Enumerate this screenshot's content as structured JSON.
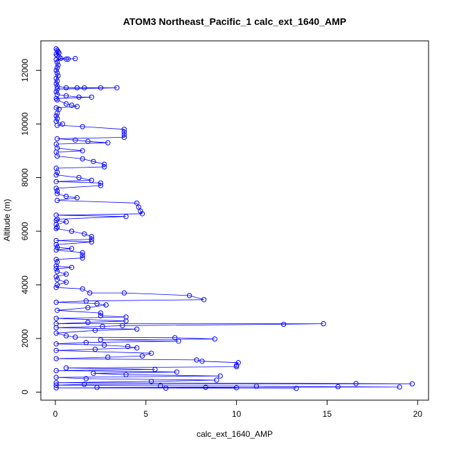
{
  "chart_data": {
    "type": "scatter",
    "title": "ATOM3 Northeast_Pacific_1 calc_ext_1640_AMP",
    "xlabel": "calc_ext_1640_AMP",
    "ylabel": "Altitude (m)",
    "xlim": [
      -0.8,
      20.6
    ],
    "ylim": [
      -300,
      13100
    ],
    "xticks": [
      0,
      5,
      10,
      15,
      20
    ],
    "yticks": [
      0,
      2000,
      4000,
      6000,
      8000,
      10000,
      12000
    ],
    "grid": false,
    "marker": "open-circle",
    "connected": true,
    "series": [
      {
        "color": "#0000ff",
        "points": [
          [
            0.05,
            12800
          ],
          [
            0.1,
            12750
          ],
          [
            0.15,
            12700
          ],
          [
            0.2,
            12650
          ],
          [
            0.05,
            12600
          ],
          [
            0.1,
            12550
          ],
          [
            0.2,
            12500
          ],
          [
            0.3,
            12450
          ],
          [
            0.6,
            12420
          ],
          [
            0.7,
            12420
          ],
          [
            1.1,
            12440
          ],
          [
            0.05,
            12400
          ],
          [
            0.1,
            12300
          ],
          [
            0.15,
            12200
          ],
          [
            0.1,
            12100
          ],
          [
            0.05,
            12000
          ],
          [
            0.1,
            11900
          ],
          [
            0.15,
            11800
          ],
          [
            0.05,
            11700
          ],
          [
            0.1,
            11600
          ],
          [
            0.05,
            11500
          ],
          [
            0.1,
            11400
          ],
          [
            0.6,
            11350
          ],
          [
            1.2,
            11350
          ],
          [
            1.6,
            11350
          ],
          [
            2.5,
            11350
          ],
          [
            3.4,
            11350
          ],
          [
            0.1,
            11300
          ],
          [
            0.05,
            11200
          ],
          [
            0.1,
            11100
          ],
          [
            0.6,
            11050
          ],
          [
            1.3,
            11000
          ],
          [
            2.0,
            11000
          ],
          [
            0.05,
            10950
          ],
          [
            0.1,
            10900
          ],
          [
            0.6,
            10750
          ],
          [
            0.9,
            10700
          ],
          [
            1.2,
            10650
          ],
          [
            0.05,
            10600
          ],
          [
            0.2,
            10550
          ],
          [
            0.1,
            10400
          ],
          [
            0.05,
            10300
          ],
          [
            0.1,
            10200
          ],
          [
            0.05,
            10100
          ],
          [
            0.4,
            10000
          ],
          [
            0.1,
            9950
          ],
          [
            1.5,
            9900
          ],
          [
            3.8,
            9800
          ],
          [
            3.8,
            9700
          ],
          [
            3.8,
            9600
          ],
          [
            3.8,
            9500
          ],
          [
            0.1,
            9450
          ],
          [
            1.1,
            9400
          ],
          [
            1.8,
            9350
          ],
          [
            2.9,
            9300
          ],
          [
            0.05,
            9250
          ],
          [
            0.1,
            9100
          ],
          [
            1.5,
            9000
          ],
          [
            0.05,
            8950
          ],
          [
            0.1,
            8800
          ],
          [
            1.5,
            8700
          ],
          [
            2.1,
            8600
          ],
          [
            2.7,
            8500
          ],
          [
            2.7,
            8400
          ],
          [
            0.05,
            8350
          ],
          [
            0.1,
            8200
          ],
          [
            0.05,
            8100
          ],
          [
            1.3,
            8000
          ],
          [
            2.0,
            7900
          ],
          [
            0.05,
            7850
          ],
          [
            2.5,
            7800
          ],
          [
            2.5,
            7700
          ],
          [
            0.05,
            7600
          ],
          [
            0.1,
            7500
          ],
          [
            0.1,
            7400
          ],
          [
            0.6,
            7300
          ],
          [
            1.2,
            7250
          ],
          [
            0.1,
            7150
          ],
          [
            4.5,
            7050
          ],
          [
            4.6,
            6900
          ],
          [
            4.7,
            6750
          ],
          [
            4.8,
            6650
          ],
          [
            0.05,
            6600
          ],
          [
            3.9,
            6550
          ],
          [
            0.1,
            6450
          ],
          [
            0.05,
            6400
          ],
          [
            0.6,
            6350
          ],
          [
            0.05,
            6250
          ],
          [
            0.1,
            6150
          ],
          [
            0.05,
            6100
          ],
          [
            0.9,
            6000
          ],
          [
            1.6,
            5900
          ],
          [
            2.0,
            5800
          ],
          [
            2.0,
            5700
          ],
          [
            0.05,
            5650
          ],
          [
            2.0,
            5600
          ],
          [
            0.05,
            5500
          ],
          [
            0.1,
            5400
          ],
          [
            0.9,
            5350
          ],
          [
            0.05,
            5300
          ],
          [
            1.5,
            5200
          ],
          [
            1.5,
            5100
          ],
          [
            1.5,
            5000
          ],
          [
            0.05,
            4950
          ],
          [
            0.1,
            4850
          ],
          [
            0.05,
            4700
          ],
          [
            0.9,
            4650
          ],
          [
            0.05,
            4600
          ],
          [
            0.1,
            4500
          ],
          [
            0.6,
            4400
          ],
          [
            0.05,
            4300
          ],
          [
            0.1,
            4200
          ],
          [
            0.6,
            4100
          ],
          [
            0.1,
            4000
          ],
          [
            0.05,
            3900
          ],
          [
            1.5,
            3850
          ],
          [
            1.9,
            3700
          ],
          [
            3.8,
            3700
          ],
          [
            7.4,
            3600
          ],
          [
            8.2,
            3450
          ],
          [
            1.7,
            3400
          ],
          [
            0.05,
            3350
          ],
          [
            2.3,
            3300
          ],
          [
            2.8,
            3250
          ],
          [
            1.8,
            3150
          ],
          [
            0.1,
            3050
          ],
          [
            2.5,
            2950
          ],
          [
            2.5,
            2850
          ],
          [
            3.9,
            2800
          ],
          [
            0.05,
            2750
          ],
          [
            3.9,
            2650
          ],
          [
            1.8,
            2600
          ],
          [
            0.05,
            2550
          ],
          [
            14.8,
            2550
          ],
          [
            12.6,
            2530
          ],
          [
            3.7,
            2480
          ],
          [
            2.6,
            2450
          ],
          [
            0.05,
            2400
          ],
          [
            4.5,
            2350
          ],
          [
            2.2,
            2300
          ],
          [
            0.05,
            2200
          ],
          [
            0.6,
            2100
          ],
          [
            1.1,
            2050
          ],
          [
            6.6,
            2030
          ],
          [
            8.8,
            1980
          ],
          [
            2.5,
            1950
          ],
          [
            6.8,
            1900
          ],
          [
            1.7,
            1850
          ],
          [
            0.05,
            1800
          ],
          [
            2.7,
            1750
          ],
          [
            4.0,
            1700
          ],
          [
            4.5,
            1650
          ],
          [
            2.2,
            1600
          ],
          [
            0.05,
            1550
          ],
          [
            5.3,
            1450
          ],
          [
            4.8,
            1350
          ],
          [
            2.9,
            1300
          ],
          [
            0.05,
            1250
          ],
          [
            7.8,
            1200
          ],
          [
            8.1,
            1150
          ],
          [
            10.1,
            1100
          ],
          [
            10.0,
            1000
          ],
          [
            10.0,
            950
          ],
          [
            0.6,
            900
          ],
          [
            5.5,
            850
          ],
          [
            0.05,
            800
          ],
          [
            6.7,
            750
          ],
          [
            2.1,
            700
          ],
          [
            3.9,
            650
          ],
          [
            9.1,
            600
          ],
          [
            0.05,
            550
          ],
          [
            1.7,
            500
          ],
          [
            8.9,
            450
          ],
          [
            5.3,
            400
          ],
          [
            0.05,
            350
          ],
          [
            16.6,
            320
          ],
          [
            19.7,
            310
          ],
          [
            1.6,
            290
          ],
          [
            0.05,
            260
          ],
          [
            5.8,
            240
          ],
          [
            11.1,
            220
          ],
          [
            15.6,
            200
          ],
          [
            19.0,
            190
          ],
          [
            8.3,
            180
          ],
          [
            2.3,
            170
          ],
          [
            10.0,
            165
          ],
          [
            0.05,
            160
          ],
          [
            6.1,
            150
          ],
          [
            13.3,
            140
          ]
        ]
      }
    ]
  }
}
